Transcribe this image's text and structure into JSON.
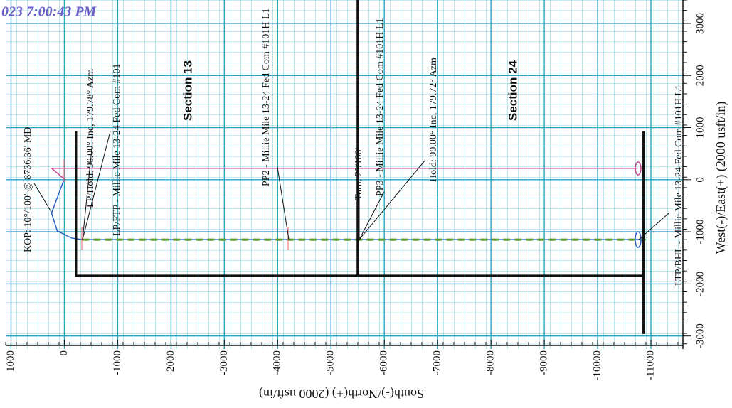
{
  "chart_data": {
    "type": "line",
    "title": "023 7:00:43 PM",
    "x_label": "South(-)/North(+) (2000 usft/in)",
    "y_label": "West(-)/East(+) (2000 usft/in)",
    "xlim": [
      1100,
      -11600
    ],
    "ylim": [
      -3250,
      3450
    ],
    "xticks": [
      1000,
      0,
      -1000,
      -2000,
      -3000,
      -4000,
      -5000,
      -6000,
      -7000,
      -8000,
      -9000,
      -10000,
      -11000
    ],
    "yticks": [
      -3000,
      -2000,
      -1000,
      0,
      1000,
      2000,
      3000
    ],
    "grid": true,
    "annotations": [
      "KOP: 10°/100' @ 8736.36' MD",
      "LP/Hold: 90.00° Inc, 179.78° Azm",
      "LP/FTP - Millie Mile 13-24 Fed Com #101",
      "Section 13",
      "PP2 - Millie Mile 13-24 Fed Com #101H L1",
      "Turn: 2°/100'",
      "PP3 - Millie Mile 13-24 Fed Com #101H L1",
      "Hold: 90.00° Inc, 179.72° Azm",
      "Section 24",
      "LTP/BHL - Millie Mile 13-24 Fed Com #101H L1"
    ],
    "series": [
      {
        "color": "#c8408a",
        "style": "solid",
        "x": [
          0,
          240,
          -10750
        ],
        "values": [
          10,
          220,
          220
        ]
      },
      {
        "color": "#2a5fc0",
        "style": "solid",
        "x": [
          0,
          240,
          133,
          -133,
          -333,
          -10900
        ],
        "values": [
          20,
          -640,
          -982,
          -1119,
          -1150,
          -1150
        ]
      },
      {
        "color": "#5c9e2e",
        "style": "dashed",
        "x": [
          -333,
          -10900
        ],
        "values": [
          -1150,
          -1150
        ]
      },
      {
        "color": "#111111",
        "style": "thick",
        "x": [
          -220,
          -220,
          -10860,
          -10860,
          -10860,
          -5500,
          -5500,
          -5500,
          -10860,
          -10860
        ],
        "values": [
          926,
          -1843,
          -1843,
          926,
          null,
          3450,
          -1843,
          null,
          -1843,
          -2962
        ]
      }
    ]
  }
}
